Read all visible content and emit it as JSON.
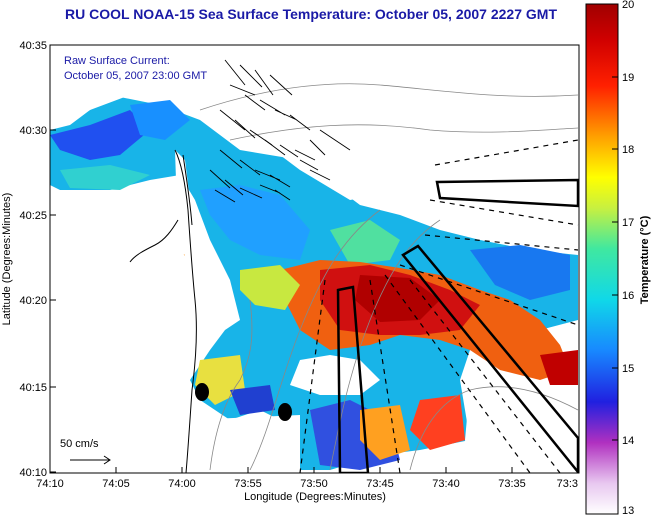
{
  "title": "RU COOL  NOAA-15  Sea Surface Temperature:  October 05, 2007 2227 GMT",
  "annotation": {
    "line1": "Raw Surface Current:",
    "line2": "October 05, 2007 23:00 GMT"
  },
  "scale_label": "50 cm/s",
  "y_axis": {
    "label": "Latitude (Degrees:Minutes)",
    "ticks": [
      "40:35",
      "40:30",
      "40:25",
      "40:20",
      "40:15",
      "40:10"
    ]
  },
  "x_axis": {
    "label": "Longitude (Degrees:Minutes)",
    "ticks": [
      "74:10",
      "74:05",
      "74:00",
      "73:55",
      "73:50",
      "73:45",
      "73:40",
      "73:35",
      "73:3"
    ]
  },
  "colorbar": {
    "label": "Temperature (°C)",
    "ticks": [
      "20",
      "19",
      "18",
      "17",
      "16",
      "15",
      "14",
      "13"
    ]
  }
}
